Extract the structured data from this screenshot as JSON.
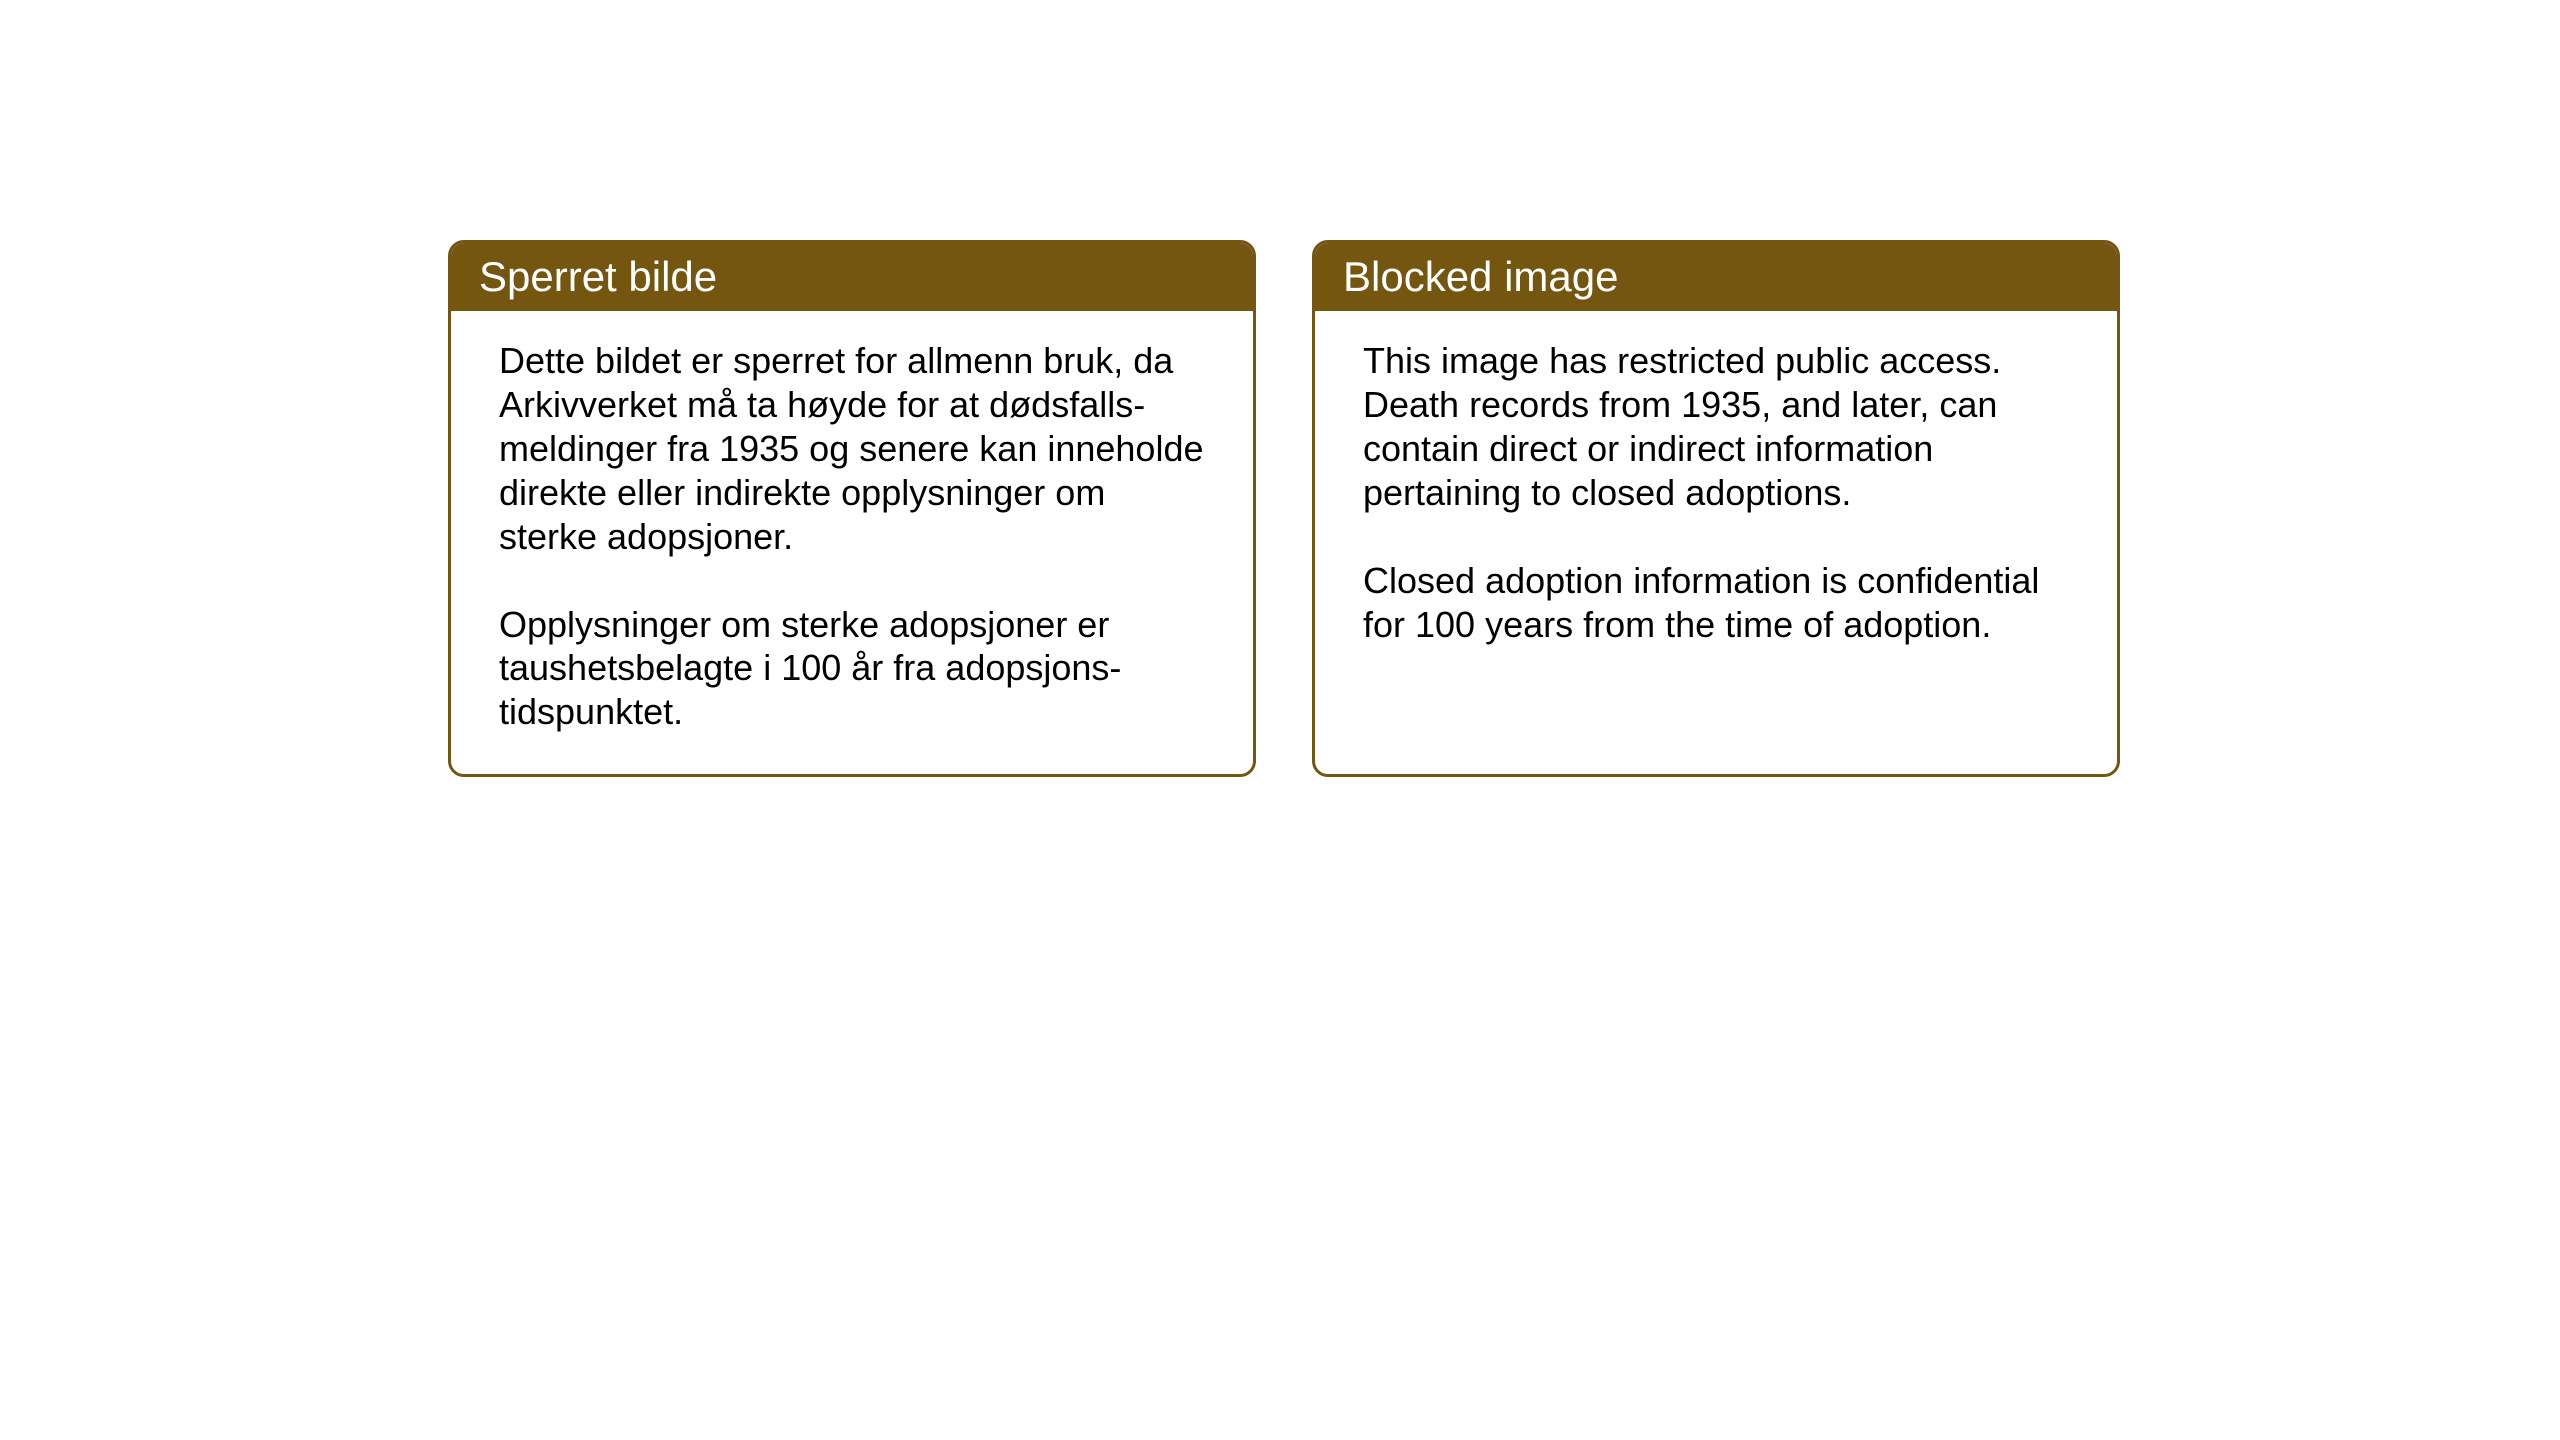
{
  "cards": {
    "norwegian": {
      "title": "Sperret bilde",
      "paragraph1": "Dette bildet er sperret for allmenn bruk, da Arkivverket må ta høyde for at dødsfalls-meldinger fra 1935 og senere kan inneholde direkte eller indirekte opplysninger om sterke adopsjoner.",
      "paragraph2": "Opplysninger om sterke adopsjoner er taushetsbelagte i 100 år fra adopsjons-tidspunktet."
    },
    "english": {
      "title": "Blocked image",
      "paragraph1": "This image has restricted public access. Death records from 1935, and later, can contain direct or indirect information pertaining to closed adoptions.",
      "paragraph2": "Closed adoption information is confidential for 100 years from the time of adoption."
    }
  },
  "styling": {
    "header_background": "#745611",
    "header_text_color": "#ffffff",
    "border_color": "#745611",
    "body_background": "#ffffff",
    "body_text_color": "#000000",
    "title_fontsize": 42,
    "body_fontsize": 36,
    "border_width": 3,
    "border_radius": 16
  }
}
